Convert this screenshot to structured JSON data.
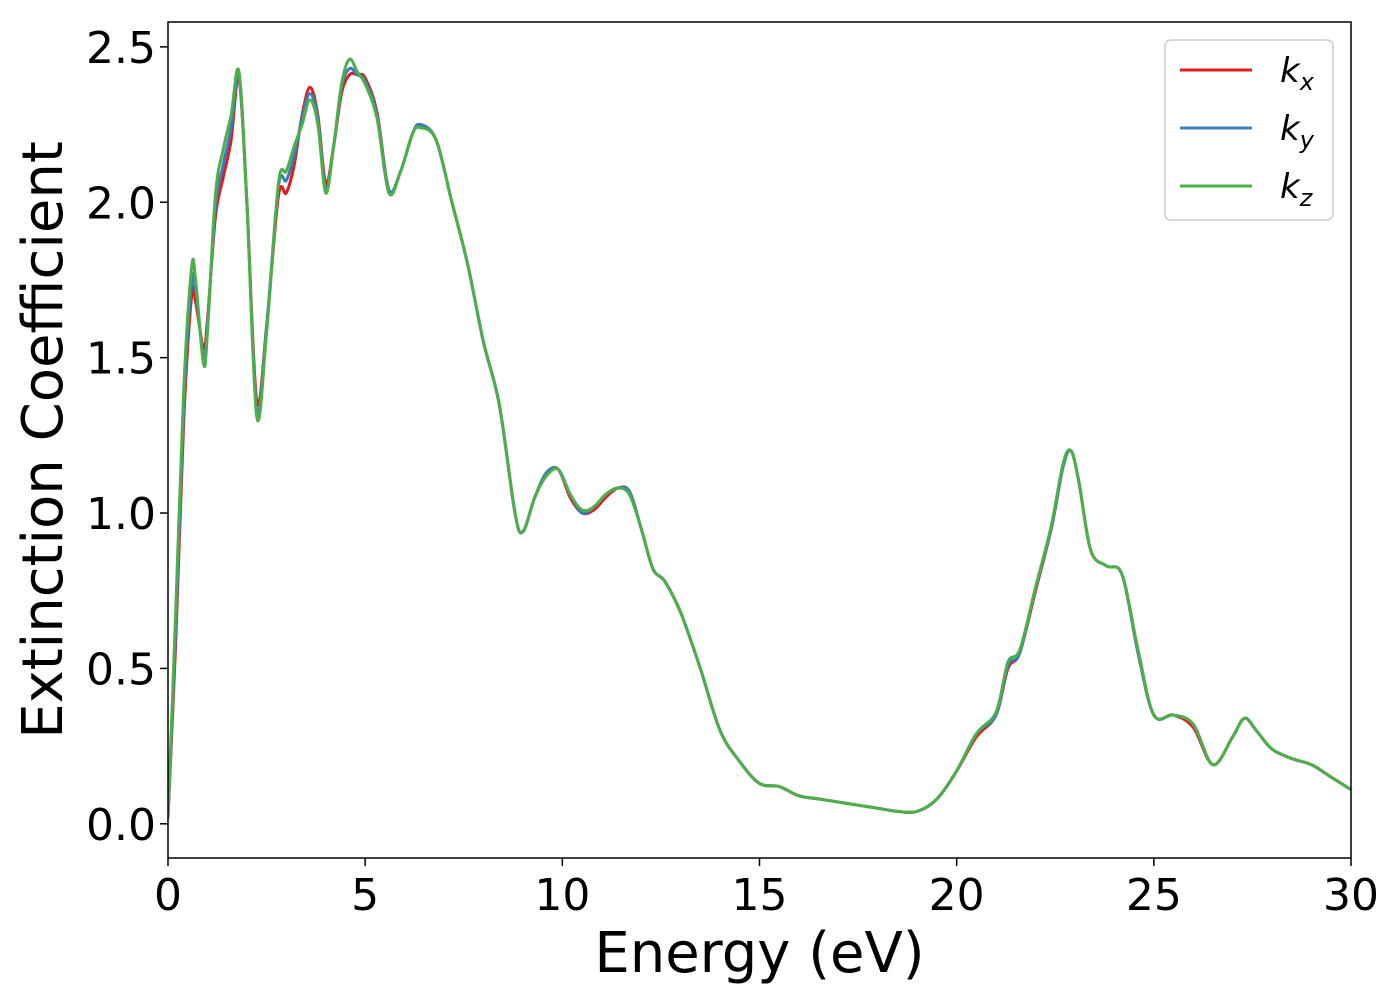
{
  "chart_data": {
    "type": "line",
    "title": "",
    "xlabel": "Energy (eV)",
    "ylabel": "Extinction Coefficient",
    "xlim": [
      0,
      30
    ],
    "ylim": [
      -0.11,
      2.58
    ],
    "xticks": [
      0,
      5,
      10,
      15,
      20,
      25,
      30
    ],
    "xtick_labels": [
      "0",
      "5",
      "10",
      "15",
      "20",
      "25",
      "30"
    ],
    "yticks": [
      0.0,
      0.5,
      1.0,
      1.5,
      2.0,
      2.5
    ],
    "ytick_labels": [
      "0.0",
      "0.5",
      "1.0",
      "1.5",
      "2.0",
      "2.5"
    ],
    "grid": false,
    "legend": "top-right",
    "series": [
      {
        "name": "k",
        "subscript": "x",
        "color": "#e41a1c",
        "x": [
          0,
          0.2,
          0.4,
          0.6,
          0.7,
          0.9,
          1.0,
          1.2,
          1.4,
          1.6,
          1.8,
          2.0,
          2.25,
          2.5,
          2.8,
          3.0,
          3.2,
          3.4,
          3.6,
          3.8,
          4.0,
          4.2,
          4.4,
          4.6,
          4.8,
          5.0,
          5.3,
          5.6,
          5.9,
          6.2,
          6.4,
          6.8,
          7.2,
          7.6,
          8.0,
          8.4,
          8.8,
          9.0,
          9.3,
          9.6,
          9.9,
          10.2,
          10.5,
          10.8,
          11.1,
          11.4,
          11.7,
          12.0,
          12.3,
          12.6,
          13.0,
          13.5,
          14.0,
          14.5,
          15.0,
          15.5,
          16.0,
          16.5,
          17.0,
          17.5,
          18.0,
          18.5,
          19.0,
          19.5,
          20.0,
          20.5,
          21.0,
          21.3,
          21.6,
          22.0,
          22.4,
          22.7,
          22.9,
          23.1,
          23.4,
          23.8,
          24.2,
          24.6,
          25.0,
          25.5,
          26.0,
          26.5,
          27.0,
          27.3,
          27.6,
          28.0,
          28.5,
          29.0,
          29.5,
          30.0
        ],
        "y": [
          0.02,
          0.6,
          1.3,
          1.7,
          1.68,
          1.53,
          1.62,
          1.95,
          2.08,
          2.2,
          2.4,
          2.0,
          1.36,
          1.6,
          2.02,
          2.03,
          2.12,
          2.28,
          2.37,
          2.28,
          2.06,
          2.18,
          2.35,
          2.41,
          2.41,
          2.4,
          2.29,
          2.04,
          2.1,
          2.22,
          2.25,
          2.2,
          2.0,
          1.8,
          1.55,
          1.35,
          1.0,
          0.94,
          1.05,
          1.13,
          1.14,
          1.05,
          1.0,
          1.01,
          1.05,
          1.08,
          1.07,
          0.95,
          0.82,
          0.78,
          0.68,
          0.5,
          0.3,
          0.2,
          0.13,
          0.12,
          0.09,
          0.08,
          0.07,
          0.06,
          0.05,
          0.04,
          0.04,
          0.08,
          0.17,
          0.28,
          0.35,
          0.5,
          0.55,
          0.75,
          0.95,
          1.15,
          1.2,
          1.1,
          0.88,
          0.83,
          0.8,
          0.55,
          0.35,
          0.35,
          0.31,
          0.19,
          0.28,
          0.34,
          0.3,
          0.24,
          0.21,
          0.19,
          0.15,
          0.11
        ]
      },
      {
        "name": "k",
        "subscript": "y",
        "color": "#377eb8",
        "x": [
          0,
          0.2,
          0.4,
          0.6,
          0.7,
          0.9,
          1.0,
          1.2,
          1.4,
          1.6,
          1.8,
          2.0,
          2.25,
          2.5,
          2.8,
          3.0,
          3.2,
          3.4,
          3.6,
          3.8,
          4.0,
          4.2,
          4.4,
          4.6,
          4.8,
          5.0,
          5.3,
          5.6,
          5.9,
          6.2,
          6.4,
          6.8,
          7.2,
          7.6,
          8.0,
          8.4,
          8.8,
          9.0,
          9.3,
          9.6,
          9.9,
          10.2,
          10.5,
          10.8,
          11.1,
          11.4,
          11.7,
          12.0,
          12.3,
          12.6,
          13.0,
          13.5,
          14.0,
          14.5,
          15.0,
          15.5,
          16.0,
          16.5,
          17.0,
          17.5,
          18.0,
          18.5,
          19.0,
          19.5,
          20.0,
          20.5,
          21.0,
          21.3,
          21.6,
          22.0,
          22.4,
          22.7,
          22.9,
          23.1,
          23.4,
          23.8,
          24.2,
          24.6,
          25.0,
          25.5,
          26.0,
          26.5,
          27.0,
          27.3,
          27.6,
          28.0,
          28.5,
          29.0,
          29.5,
          30.0
        ],
        "y": [
          0.02,
          0.65,
          1.35,
          1.74,
          1.72,
          1.5,
          1.6,
          1.98,
          2.12,
          2.24,
          2.41,
          2.0,
          1.33,
          1.6,
          2.05,
          2.07,
          2.15,
          2.27,
          2.35,
          2.27,
          2.04,
          2.18,
          2.37,
          2.43,
          2.41,
          2.39,
          2.28,
          2.04,
          2.1,
          2.22,
          2.25,
          2.2,
          2.0,
          1.8,
          1.55,
          1.35,
          1.0,
          0.94,
          1.05,
          1.13,
          1.14,
          1.06,
          1.0,
          1.02,
          1.06,
          1.08,
          1.07,
          0.95,
          0.82,
          0.78,
          0.68,
          0.5,
          0.3,
          0.2,
          0.13,
          0.12,
          0.09,
          0.08,
          0.07,
          0.06,
          0.05,
          0.04,
          0.04,
          0.08,
          0.17,
          0.29,
          0.35,
          0.51,
          0.55,
          0.76,
          0.95,
          1.15,
          1.2,
          1.1,
          0.88,
          0.83,
          0.8,
          0.55,
          0.35,
          0.35,
          0.32,
          0.19,
          0.28,
          0.34,
          0.3,
          0.24,
          0.21,
          0.19,
          0.15,
          0.11
        ]
      },
      {
        "name": "k",
        "subscript": "z",
        "color": "#4daf4a",
        "x": [
          0,
          0.2,
          0.4,
          0.6,
          0.7,
          0.9,
          1.0,
          1.2,
          1.4,
          1.6,
          1.8,
          2.0,
          2.25,
          2.5,
          2.8,
          3.0,
          3.2,
          3.4,
          3.6,
          3.8,
          4.0,
          4.2,
          4.4,
          4.6,
          4.8,
          5.0,
          5.3,
          5.6,
          5.9,
          6.2,
          6.4,
          6.8,
          7.2,
          7.6,
          8.0,
          8.4,
          8.8,
          9.0,
          9.3,
          9.6,
          9.9,
          10.2,
          10.5,
          10.8,
          11.1,
          11.4,
          11.7,
          12.0,
          12.3,
          12.6,
          13.0,
          13.5,
          14.0,
          14.5,
          15.0,
          15.5,
          16.0,
          16.5,
          17.0,
          17.5,
          18.0,
          18.5,
          19.0,
          19.5,
          20.0,
          20.5,
          21.0,
          21.3,
          21.6,
          22.0,
          22.4,
          22.7,
          22.9,
          23.1,
          23.4,
          23.8,
          24.2,
          24.6,
          25.0,
          25.5,
          26.0,
          26.5,
          27.0,
          27.3,
          27.6,
          28.0,
          28.5,
          29.0,
          29.5,
          30.0
        ],
        "y": [
          0.02,
          0.7,
          1.4,
          1.79,
          1.75,
          1.48,
          1.58,
          2.02,
          2.17,
          2.28,
          2.42,
          2.0,
          1.31,
          1.58,
          2.06,
          2.1,
          2.18,
          2.25,
          2.33,
          2.25,
          2.03,
          2.18,
          2.38,
          2.46,
          2.42,
          2.38,
          2.27,
          2.03,
          2.1,
          2.22,
          2.24,
          2.2,
          2.0,
          1.8,
          1.55,
          1.35,
          1.0,
          0.94,
          1.05,
          1.12,
          1.14,
          1.06,
          1.01,
          1.02,
          1.06,
          1.08,
          1.06,
          0.95,
          0.82,
          0.78,
          0.68,
          0.5,
          0.3,
          0.2,
          0.13,
          0.12,
          0.09,
          0.08,
          0.07,
          0.06,
          0.05,
          0.04,
          0.04,
          0.08,
          0.17,
          0.29,
          0.36,
          0.52,
          0.56,
          0.76,
          0.96,
          1.16,
          1.2,
          1.1,
          0.88,
          0.83,
          0.8,
          0.56,
          0.35,
          0.35,
          0.32,
          0.19,
          0.28,
          0.34,
          0.3,
          0.24,
          0.21,
          0.19,
          0.15,
          0.11
        ]
      }
    ]
  }
}
